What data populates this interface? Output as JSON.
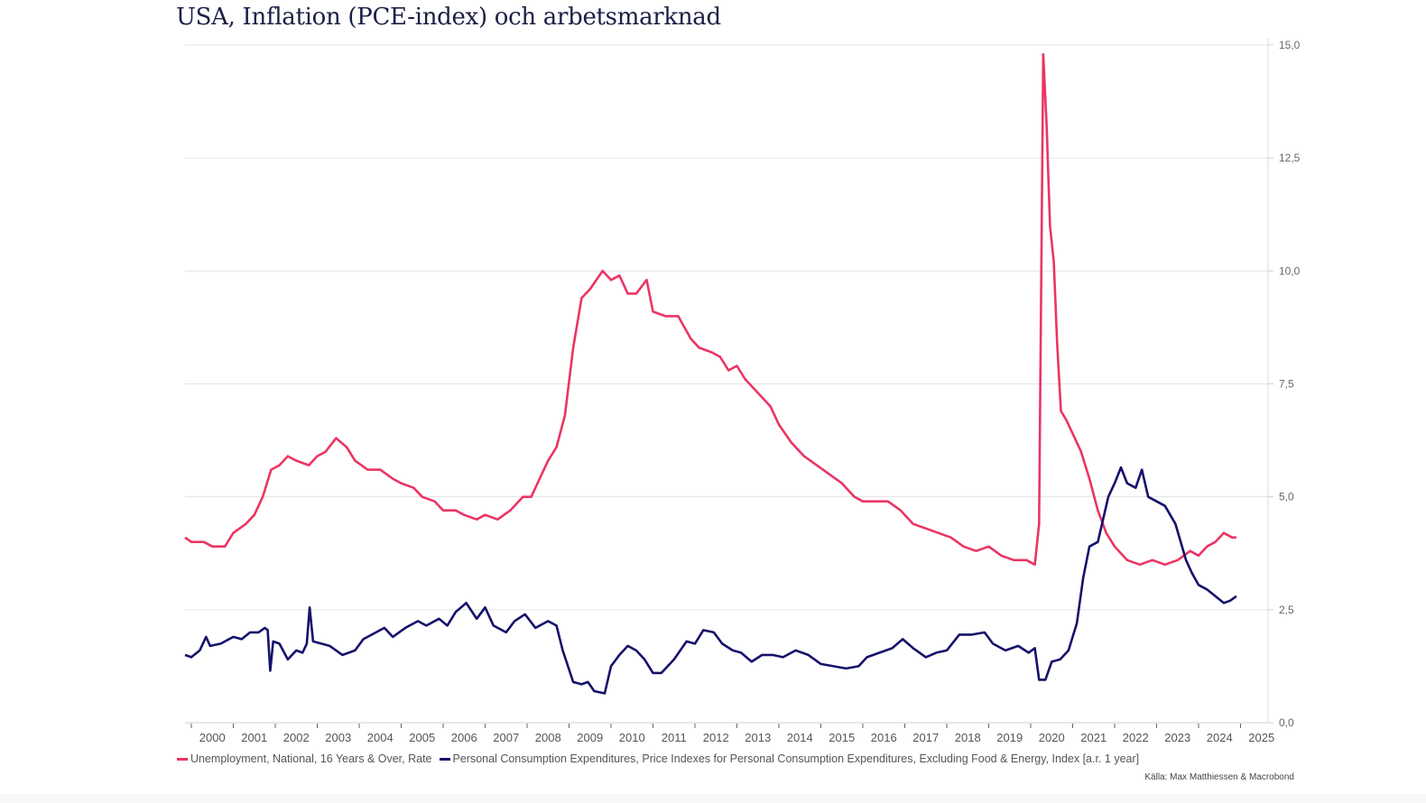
{
  "title": "USA, Inflation (PCE-index) och arbetsmarknad",
  "source": "Källa: Max Matthiessen & Macrobond",
  "colors": {
    "unemployment": "#ea3563",
    "pce": "#15126b",
    "grid": "#e3e3e3",
    "title": "#1b1f45"
  },
  "chart_data": {
    "type": "line",
    "title": "USA, Inflation (PCE-index) och arbetsmarknad",
    "xlabel": "",
    "ylabel": "",
    "xlim": [
      2000,
      2025
    ],
    "ylim": [
      0,
      15
    ],
    "x_ticks": [
      "2000",
      "2001",
      "2002",
      "2003",
      "2004",
      "2005",
      "2006",
      "2007",
      "2008",
      "2009",
      "2010",
      "2011",
      "2012",
      "2013",
      "2014",
      "2015",
      "2016",
      "2017",
      "2018",
      "2019",
      "2020",
      "2021",
      "2022",
      "2023",
      "2024",
      "2025"
    ],
    "y_ticks": [
      "0,0",
      "2,5",
      "5,0",
      "7,5",
      "10,0",
      "12,5",
      "15,0"
    ],
    "y_tick_values": [
      0,
      2.5,
      5,
      7.5,
      10,
      12.5,
      15
    ],
    "grid": true,
    "y_axis_side": "right",
    "legend_position": "bottom",
    "series": [
      {
        "name": "Unemployment, National, 16 Years & Over, Rate",
        "color": "#ea3563",
        "x": [
          1999.85,
          2000.0,
          2000.3,
          2000.5,
          2000.8,
          2001.0,
          2001.3,
          2001.5,
          2001.7,
          2001.9,
          2002.1,
          2002.3,
          2002.5,
          2002.8,
          2003.0,
          2003.2,
          2003.45,
          2003.7,
          2003.9,
          2004.2,
          2004.5,
          2004.8,
          2005.0,
          2005.3,
          2005.5,
          2005.8,
          2006.0,
          2006.3,
          2006.5,
          2006.8,
          2007.0,
          2007.3,
          2007.6,
          2007.9,
          2008.1,
          2008.3,
          2008.5,
          2008.7,
          2008.9,
          2009.1,
          2009.3,
          2009.5,
          2009.8,
          2010.0,
          2010.2,
          2010.4,
          2010.6,
          2010.85,
          2011.0,
          2011.3,
          2011.6,
          2011.9,
          2012.1,
          2012.4,
          2012.6,
          2012.8,
          2013.0,
          2013.2,
          2013.5,
          2013.8,
          2014.0,
          2014.3,
          2014.6,
          2014.9,
          2015.2,
          2015.5,
          2015.8,
          2016.0,
          2016.3,
          2016.6,
          2016.9,
          2017.2,
          2017.5,
          2017.8,
          2018.1,
          2018.4,
          2018.7,
          2019.0,
          2019.3,
          2019.6,
          2019.9,
          2020.1,
          2020.2,
          2020.3,
          2020.38,
          2020.46,
          2020.55,
          2020.63,
          2020.72,
          2020.85,
          2021.0,
          2021.2,
          2021.4,
          2021.6,
          2021.8,
          2022.0,
          2022.3,
          2022.6,
          2022.9,
          2023.2,
          2023.5,
          2023.8,
          2024.0,
          2024.2,
          2024.4,
          2024.6,
          2024.8,
          2024.9
        ],
        "values": [
          4.1,
          4.0,
          4.0,
          3.9,
          3.9,
          4.2,
          4.4,
          4.6,
          5.0,
          5.6,
          5.7,
          5.9,
          5.8,
          5.7,
          5.9,
          6.0,
          6.3,
          6.1,
          5.8,
          5.6,
          5.6,
          5.4,
          5.3,
          5.2,
          5.0,
          4.9,
          4.7,
          4.7,
          4.6,
          4.5,
          4.6,
          4.5,
          4.7,
          5.0,
          5.0,
          5.4,
          5.8,
          6.1,
          6.8,
          8.3,
          9.4,
          9.6,
          10.0,
          9.8,
          9.9,
          9.5,
          9.5,
          9.8,
          9.1,
          9.0,
          9.0,
          8.5,
          8.3,
          8.2,
          8.1,
          7.8,
          7.9,
          7.6,
          7.3,
          7.0,
          6.6,
          6.2,
          5.9,
          5.7,
          5.5,
          5.3,
          5.0,
          4.9,
          4.9,
          4.9,
          4.7,
          4.4,
          4.3,
          4.2,
          4.1,
          3.9,
          3.8,
          3.9,
          3.7,
          3.6,
          3.6,
          3.5,
          4.4,
          14.8,
          13.2,
          11.0,
          10.2,
          8.4,
          6.9,
          6.7,
          6.4,
          6.0,
          5.4,
          4.7,
          4.2,
          3.9,
          3.6,
          3.5,
          3.6,
          3.5,
          3.6,
          3.8,
          3.7,
          3.9,
          4.0,
          4.2,
          4.1,
          4.1
        ]
      },
      {
        "name": "Personal Consumption Expenditures, Price Indexes for Personal Consumption Expenditures, Excluding Food & Energy, Index [a.r. 1 year]",
        "color": "#15126b",
        "x": [
          1999.85,
          2000.0,
          2000.2,
          2000.35,
          2000.45,
          2000.7,
          2001.0,
          2001.2,
          2001.4,
          2001.6,
          2001.75,
          2001.82,
          2001.88,
          2001.95,
          2002.1,
          2002.3,
          2002.5,
          2002.65,
          2002.75,
          2002.82,
          2002.9,
          2003.1,
          2003.3,
          2003.6,
          2003.9,
          2004.1,
          2004.4,
          2004.6,
          2004.8,
          2005.1,
          2005.4,
          2005.6,
          2005.9,
          2006.1,
          2006.3,
          2006.55,
          2006.8,
          2007.0,
          2007.2,
          2007.5,
          2007.7,
          2007.95,
          2008.2,
          2008.5,
          2008.7,
          2008.85,
          2009.1,
          2009.3,
          2009.45,
          2009.6,
          2009.85,
          2010.0,
          2010.2,
          2010.4,
          2010.6,
          2010.8,
          2011.0,
          2011.2,
          2011.5,
          2011.8,
          2012.0,
          2012.2,
          2012.45,
          2012.65,
          2012.9,
          2013.1,
          2013.35,
          2013.6,
          2013.85,
          2014.1,
          2014.4,
          2014.7,
          2015.0,
          2015.3,
          2015.6,
          2015.9,
          2016.1,
          2016.4,
          2016.7,
          2016.95,
          2017.2,
          2017.5,
          2017.75,
          2018.0,
          2018.3,
          2018.6,
          2018.9,
          2019.1,
          2019.4,
          2019.7,
          2019.95,
          2020.1,
          2020.2,
          2020.35,
          2020.5,
          2020.7,
          2020.9,
          2021.1,
          2021.25,
          2021.4,
          2021.6,
          2021.85,
          2022.0,
          2022.15,
          2022.3,
          2022.5,
          2022.65,
          2022.8,
          2023.0,
          2023.2,
          2023.45,
          2023.7,
          2023.85,
          2024.0,
          2024.2,
          2024.4,
          2024.6,
          2024.75,
          2024.9
        ],
        "values": [
          1.5,
          1.45,
          1.6,
          1.9,
          1.7,
          1.75,
          1.9,
          1.85,
          2.0,
          2.0,
          2.1,
          2.05,
          1.15,
          1.8,
          1.75,
          1.4,
          1.6,
          1.55,
          1.75,
          2.55,
          1.8,
          1.75,
          1.7,
          1.5,
          1.6,
          1.85,
          2.0,
          2.1,
          1.9,
          2.1,
          2.25,
          2.15,
          2.3,
          2.15,
          2.45,
          2.65,
          2.3,
          2.55,
          2.15,
          2.0,
          2.25,
          2.4,
          2.1,
          2.25,
          2.15,
          1.6,
          0.9,
          0.85,
          0.9,
          0.7,
          0.65,
          1.25,
          1.5,
          1.7,
          1.6,
          1.4,
          1.1,
          1.1,
          1.4,
          1.8,
          1.75,
          2.05,
          2.0,
          1.75,
          1.6,
          1.55,
          1.35,
          1.5,
          1.5,
          1.45,
          1.6,
          1.5,
          1.3,
          1.25,
          1.2,
          1.25,
          1.45,
          1.55,
          1.65,
          1.85,
          1.65,
          1.45,
          1.55,
          1.6,
          1.95,
          1.95,
          2.0,
          1.75,
          1.6,
          1.7,
          1.55,
          1.65,
          0.95,
          0.95,
          1.35,
          1.4,
          1.6,
          2.2,
          3.2,
          3.9,
          4.0,
          5.0,
          5.3,
          5.65,
          5.3,
          5.2,
          5.6,
          5.0,
          4.9,
          4.8,
          4.4,
          3.6,
          3.3,
          3.05,
          2.95,
          2.8,
          2.65,
          2.7,
          2.8
        ]
      }
    ]
  }
}
